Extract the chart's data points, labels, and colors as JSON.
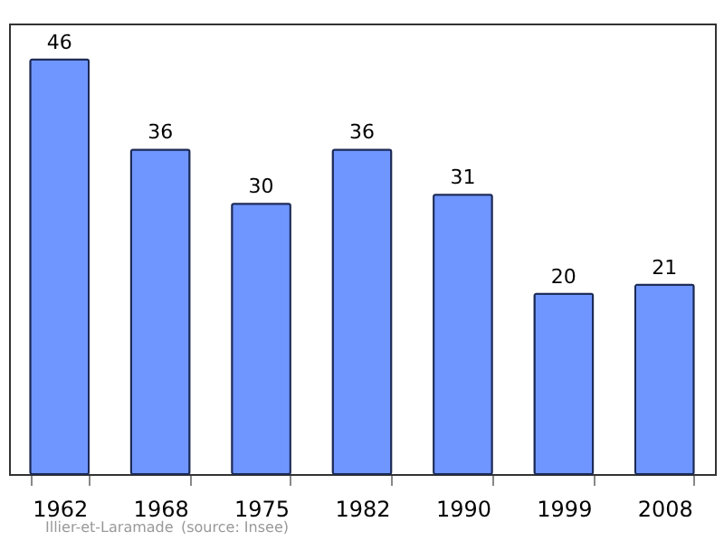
{
  "chart_data": {
    "type": "bar",
    "categories": [
      "1962",
      "1968",
      "1975",
      "1982",
      "1990",
      "1999",
      "2008"
    ],
    "values": [
      46,
      36,
      30,
      36,
      31,
      20,
      21
    ],
    "color": "#6f95ff",
    "data_labels": true,
    "grid": false,
    "annotations": [
      "Illier-et-Laramade",
      "(source: Insee)"
    ]
  }
}
